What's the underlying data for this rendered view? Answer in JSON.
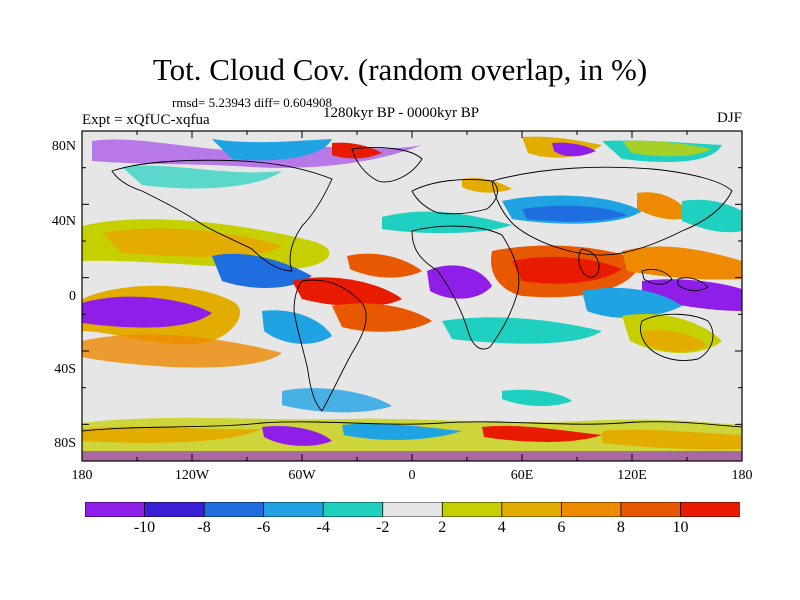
{
  "title": "Tot. Cloud Cov. (random overlap, in %)",
  "stats_text": "rmsd= 5.23943 diff= 0.604908",
  "experiment_label": "Expt = xQfUC-xqfua",
  "period_label": "1280kyr BP - 0000kyr BP",
  "season_label": "DJF",
  "axes": {
    "lat_ticks": [
      "80N",
      "40N",
      "0",
      "40S",
      "80S"
    ],
    "lon_ticks": [
      "180",
      "120W",
      "60W",
      "0",
      "60E",
      "120E",
      "180"
    ]
  },
  "colorbar": {
    "labels": [
      "-10",
      "-8",
      "-6",
      "-4",
      "-2",
      "2",
      "4",
      "6",
      "8",
      "10"
    ],
    "colors": [
      "#8f1fe8",
      "#3a1fd6",
      "#1f6ee0",
      "#1fa3e3",
      "#1fd0c0",
      "#e6e6e6",
      "#c6cf00",
      "#e3ad00",
      "#ee8a00",
      "#e85800",
      "#e81a00"
    ]
  },
  "map": {
    "background_color": "#e6e6e6",
    "coastline_color": "#000000",
    "land_boundary_color": "#000000"
  }
}
